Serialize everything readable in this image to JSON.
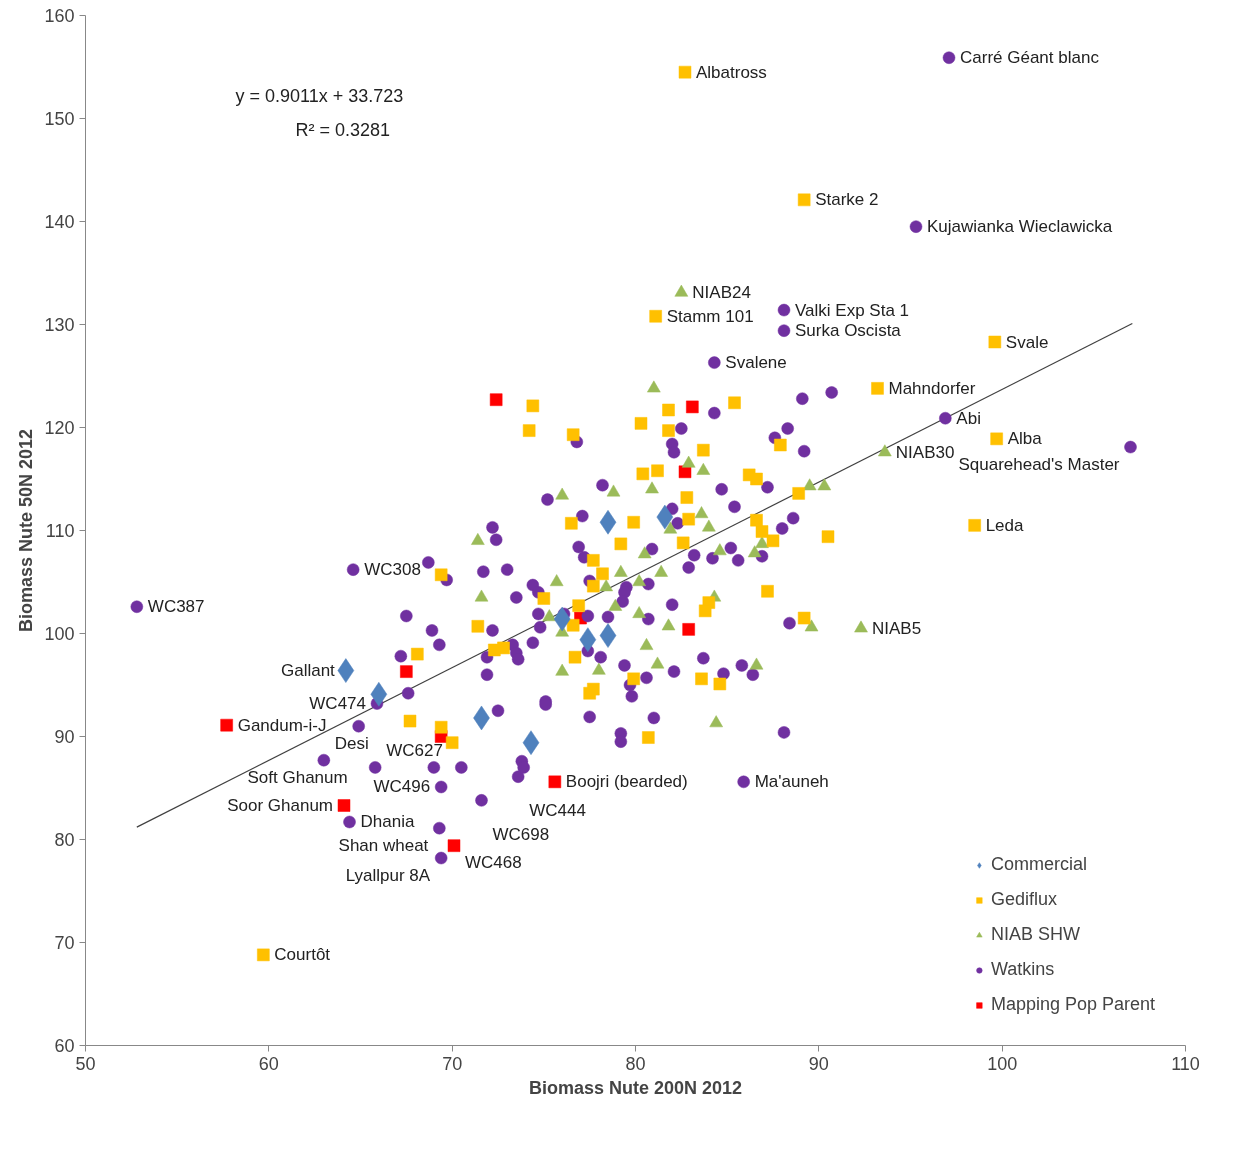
{
  "chart_data": {
    "type": "scatter",
    "xlabel": "Biomass Nute 200N 2012",
    "ylabel": "Biomass Nute 50N 2012",
    "xlim": [
      50,
      110
    ],
    "xticks": [
      50,
      60,
      70,
      80,
      90,
      100,
      110
    ],
    "ylim": [
      60,
      160
    ],
    "yticks": [
      60,
      70,
      80,
      90,
      100,
      110,
      120,
      130,
      140,
      150,
      160
    ],
    "grid": false,
    "legend": "bottom right",
    "series": [
      {
        "name": "Commercial",
        "marker": "diamond",
        "color": "#4f81bd",
        "x": [
          64.2,
          66.0,
          71.6,
          74.3,
          76.0,
          77.4,
          78.5,
          78.5,
          81.6
        ],
        "values": [
          96.4,
          94.1,
          91.8,
          89.4,
          101.4,
          99.4,
          99.8,
          110.8,
          111.3
        ]
      },
      {
        "name": "Gediflux",
        "marker": "square",
        "color": "#ffc000",
        "x": [
          82.7,
          89.2,
          81.1,
          99.6,
          93.2,
          99.7,
          98.5,
          59.7,
          74.4,
          74.2,
          69.4,
          71.4,
          68.1,
          72.3,
          72.8,
          76.6,
          81.8,
          80.3,
          81.8,
          85.4,
          83.7,
          87.9,
          80.4,
          81.2,
          86.2,
          86.6,
          88.9,
          82.8,
          82.9,
          79.9,
          76.5,
          86.6,
          86.9,
          87.5,
          90.5,
          82.6,
          79.2,
          77.7,
          78.2,
          77.7,
          75.0,
          76.9,
          87.2,
          84.0,
          83.8,
          89.2,
          76.6,
          76.7,
          79.9,
          83.6,
          84.6,
          67.7,
          69.4,
          70.0,
          77.7,
          77.5,
          80.7
        ],
        "values": [
          154.5,
          142.1,
          130.8,
          128.3,
          123.8,
          118.9,
          110.5,
          68.8,
          122.1,
          119.7,
          105.7,
          100.7,
          98.0,
          98.4,
          98.6,
          119.3,
          121.7,
          120.4,
          119.7,
          122.4,
          117.8,
          118.3,
          115.5,
          115.8,
          115.4,
          115.0,
          113.6,
          113.2,
          111.1,
          110.8,
          110.7,
          111.0,
          109.9,
          109.0,
          109.4,
          108.8,
          108.7,
          107.1,
          105.8,
          104.6,
          103.4,
          102.7,
          104.1,
          103.0,
          102.2,
          101.5,
          100.8,
          97.7,
          95.6,
          95.6,
          95.1,
          91.5,
          90.9,
          89.4,
          94.6,
          94.2,
          89.9
        ]
      },
      {
        "name": "NIAB SHW",
        "marker": "triangle",
        "color": "#9bbb59",
        "x": [
          82.5,
          93.6,
          92.3,
          71.4,
          71.6,
          81.0,
          76.0,
          78.8,
          80.9,
          82.9,
          83.7,
          83.6,
          84.0,
          81.9,
          80.5,
          84.6,
          86.9,
          86.5,
          89.5,
          90.3,
          75.7,
          79.2,
          78.4,
          81.4,
          80.2,
          78.9,
          80.2,
          81.8,
          84.3,
          89.6,
          75.3,
          76.0,
          80.6,
          76.0,
          78.0,
          81.2,
          86.6,
          84.4
        ],
        "values": [
          133.1,
          117.6,
          100.5,
          109.0,
          103.5,
          123.8,
          113.4,
          113.7,
          114.0,
          116.5,
          115.8,
          111.6,
          110.3,
          110.1,
          107.7,
          108.0,
          108.7,
          107.8,
          114.3,
          114.3,
          105.0,
          105.9,
          104.5,
          105.9,
          105.0,
          102.6,
          101.9,
          100.7,
          103.5,
          100.6,
          101.6,
          100.1,
          98.8,
          96.3,
          96.4,
          97.0,
          96.9,
          91.3
        ]
      },
      {
        "name": "Watkins",
        "marker": "circle",
        "color": "#7030a0",
        "x": [
          97.1,
          95.3,
          88.1,
          88.1,
          84.3,
          96.9,
          107.0,
          52.8,
          64.6,
          85.9,
          63.0,
          65.8,
          69.4,
          73.6,
          71.6,
          64.4,
          69.3,
          69.4,
          65.9,
          64.9,
          69.0,
          70.5,
          67.6,
          72.5,
          73.8,
          73.9,
          71.9,
          72.2,
          72.4,
          68.7,
          69.7,
          71.7,
          73.0,
          73.5,
          74.4,
          67.5,
          68.9,
          72.2,
          69.3,
          67.2,
          71.9,
          73.3,
          73.5,
          73.6,
          74.4,
          84.3,
          89.1,
          90.7,
          82.5,
          76.8,
          82.0,
          82.1,
          88.3,
          87.6,
          89.2,
          78.2,
          75.2,
          84.7,
          87.2,
          85.4,
          82.0,
          82.3,
          77.1,
          88.6,
          88.0,
          80.9,
          76.9,
          77.2,
          85.2,
          85.6,
          84.2,
          83.2,
          82.9,
          86.9,
          80.7,
          77.5,
          79.5,
          79.4,
          79.3,
          74.7,
          82.0,
          80.7,
          74.7,
          76.1,
          77.4,
          78.5,
          74.8,
          88.4,
          77.4,
          78.1,
          83.7,
          79.4,
          85.8,
          82.1,
          84.8,
          86.4,
          80.6,
          79.7,
          79.8,
          75.1,
          75.1,
          77.5,
          81.0,
          79.2,
          79.2,
          88.1
        ],
        "values": [
          155.9,
          139.5,
          131.4,
          129.4,
          126.3,
          120.9,
          118.1,
          102.6,
          106.2,
          85.6,
          87.7,
          87.0,
          85.1,
          86.1,
          83.8,
          81.7,
          81.1,
          78.2,
          93.2,
          91.0,
          87.0,
          87.0,
          94.2,
          92.5,
          87.6,
          87.0,
          96.0,
          110.3,
          109.1,
          106.9,
          105.2,
          106.0,
          106.2,
          103.5,
          104.7,
          101.7,
          100.3,
          100.3,
          98.9,
          97.8,
          97.7,
          98.9,
          98.1,
          97.5,
          99.1,
          121.4,
          122.8,
          123.4,
          119.9,
          118.6,
          118.4,
          117.6,
          119.9,
          119.0,
          117.7,
          114.4,
          113.0,
          114.0,
          114.2,
          112.3,
          112.1,
          110.7,
          111.4,
          111.2,
          110.2,
          108.2,
          108.4,
          107.4,
          108.3,
          107.1,
          107.3,
          107.6,
          106.4,
          107.5,
          104.8,
          105.1,
          104.5,
          104.0,
          103.1,
          104.0,
          102.8,
          101.4,
          101.9,
          101.9,
          101.7,
          101.6,
          100.6,
          101.0,
          98.3,
          97.7,
          97.6,
          96.9,
          96.9,
          96.3,
          96.1,
          96.0,
          95.7,
          95.0,
          93.9,
          93.4,
          93.1,
          91.9,
          91.8,
          90.3,
          89.5,
          90.4
        ]
      },
      {
        "name": "Mapping Pop Parent",
        "marker": "square",
        "color": "#ff0000",
        "x": [
          57.7,
          64.1,
          75.6,
          70.1,
          67.5,
          69.4,
          72.4,
          77.0,
          82.7,
          83.1,
          82.9
        ],
        "values": [
          91.1,
          83.3,
          85.6,
          79.4,
          96.3,
          90.0,
          122.7,
          101.5,
          115.7,
          122.0,
          100.4
        ]
      },
      {
        "type": "line",
        "color": "#404040",
        "x": [
          52.8,
          107.1
        ],
        "values": [
          81.2,
          130.1
        ]
      }
    ],
    "annotations": [
      "y = 0.9011x + 33.723",
      "R² = 0.3281",
      {
        "text": "Albatross",
        "x": 82.7,
        "y": 154.5
      },
      {
        "text": "Carré Géant blanc",
        "x": 97.1,
        "y": 155.9
      },
      {
        "text": "Starke 2",
        "x": 89.2,
        "y": 142.1
      },
      {
        "text": "Kujawianka Wieclawicka",
        "x": 95.3,
        "y": 139.5
      },
      {
        "text": "NIAB24",
        "x": 82.5,
        "y": 133.1
      },
      {
        "text": "Stamm 101",
        "x": 81.1,
        "y": 130.8
      },
      {
        "text": "Valki Exp Sta 1",
        "x": 88.1,
        "y": 131.4
      },
      {
        "text": "Surka Oscista",
        "x": 88.1,
        "y": 129.4
      },
      {
        "text": "Svalene",
        "x": 84.3,
        "y": 126.3
      },
      {
        "text": "Svale",
        "x": 99.6,
        "y": 128.3
      },
      {
        "text": "Mahndorfer",
        "x": 93.2,
        "y": 123.8
      },
      {
        "text": "Abi",
        "x": 96.9,
        "y": 120.9
      },
      {
        "text": "Alba",
        "x": 99.7,
        "y": 118.9
      },
      {
        "text": "Squarehead's Master",
        "x": 107.0,
        "y": 118.1
      },
      {
        "text": "NIAB30",
        "x": 93.6,
        "y": 117.6
      },
      {
        "text": "Leda",
        "x": 98.5,
        "y": 110.5
      },
      {
        "text": "NIAB5",
        "x": 92.3,
        "y": 100.5
      },
      {
        "text": "WC387",
        "x": 52.8,
        "y": 102.6
      },
      {
        "text": "WC308",
        "x": 64.6,
        "y": 106.2
      },
      {
        "text": "Gallant",
        "x": 64.2,
        "y": 96.4
      },
      {
        "text": "WC474",
        "x": 65.9,
        "y": 93.2
      },
      {
        "text": "Gandum-i-J",
        "x": 57.7,
        "y": 91.1
      },
      {
        "text": "Soft Ghanum",
        "x": 64.9,
        "y": 91.0
      },
      {
        "text": "Desi",
        "x": 63.0,
        "y": 87.7
      },
      {
        "text": "WC627",
        "x": 65.8,
        "y": 87.0
      },
      {
        "text": "WC496",
        "x": 69.4,
        "y": 85.1
      },
      {
        "text": "WC444",
        "x": 73.6,
        "y": 86.1
      },
      {
        "text": "Boojri (bearded)",
        "x": 75.6,
        "y": 85.6
      },
      {
        "text": "Ma'auneh",
        "x": 85.9,
        "y": 85.6
      },
      {
        "text": "WC698",
        "x": 71.6,
        "y": 83.8
      },
      {
        "text": "Soor Ghanum",
        "x": 64.1,
        "y": 83.3
      },
      {
        "text": "Dhania",
        "x": 64.4,
        "y": 81.7
      },
      {
        "text": "Shan wheat",
        "x": 69.3,
        "y": 81.1
      },
      {
        "text": "WC468",
        "x": 70.1,
        "y": 79.4
      },
      {
        "text": "Lyallpur 8A",
        "x": 69.4,
        "y": 78.2
      },
      {
        "text": "Courtôt",
        "x": 59.7,
        "y": 68.8
      }
    ]
  }
}
